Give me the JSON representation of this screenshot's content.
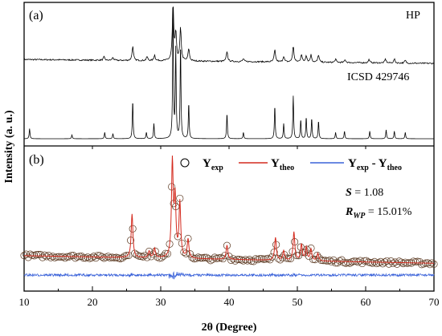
{
  "chart_data": {
    "type": "line",
    "x_label": "2θ (Degree)",
    "y_label": "Intensity (a. u.)",
    "x_range": [
      10,
      70
    ],
    "x_ticks": [
      10,
      20,
      30,
      40,
      50,
      60,
      70
    ],
    "colors": {
      "experimental": "#000000",
      "calculated": "#d42a1e",
      "difference": "#3a62d9",
      "markers": "#5a3820"
    },
    "panels": [
      {
        "label": "(a)",
        "series": [
          {
            "name": "HP",
            "color": "#000000",
            "role": "experimental pattern",
            "baseline": 0.14,
            "noise": 0.012,
            "peaks": [
              [
                21.7,
                0.06
              ],
              [
                23.0,
                0.05
              ],
              [
                25.9,
                0.25
              ],
              [
                28.0,
                0.07
              ],
              [
                29.1,
                0.1
              ],
              [
                31.8,
                1.0
              ],
              [
                32.2,
                0.48
              ],
              [
                32.9,
                0.58
              ],
              [
                34.1,
                0.22
              ],
              [
                39.7,
                0.18
              ],
              [
                42.1,
                0.05
              ],
              [
                46.7,
                0.21
              ],
              [
                48.0,
                0.1
              ],
              [
                49.4,
                0.28
              ],
              [
                50.6,
                0.14
              ],
              [
                51.3,
                0.12
              ],
              [
                52.0,
                0.13
              ],
              [
                53.1,
                0.13
              ],
              [
                55.6,
                0.06
              ],
              [
                57.0,
                0.05
              ],
              [
                60.5,
                0.06
              ],
              [
                62.9,
                0.07
              ],
              [
                64.2,
                0.07
              ],
              [
                65.8,
                0.05
              ]
            ]
          },
          {
            "name": "ICSD 429746",
            "color": "#000000",
            "role": "reference pattern",
            "baseline": 0.0,
            "noise": 0.0,
            "peaks": [
              [
                10.8,
                0.08
              ],
              [
                17.0,
                0.03
              ],
              [
                21.8,
                0.05
              ],
              [
                23.0,
                0.04
              ],
              [
                25.9,
                0.3
              ],
              [
                27.9,
                0.05
              ],
              [
                29.0,
                0.12
              ],
              [
                31.8,
                1.0
              ],
              [
                32.2,
                0.7
              ],
              [
                32.9,
                0.75
              ],
              [
                34.1,
                0.28
              ],
              [
                39.7,
                0.2
              ],
              [
                42.1,
                0.05
              ],
              [
                46.7,
                0.26
              ],
              [
                48.0,
                0.12
              ],
              [
                49.4,
                0.34
              ],
              [
                50.5,
                0.15
              ],
              [
                51.3,
                0.17
              ],
              [
                52.1,
                0.16
              ],
              [
                53.1,
                0.14
              ],
              [
                55.6,
                0.05
              ],
              [
                56.9,
                0.06
              ],
              [
                60.6,
                0.06
              ],
              [
                63.0,
                0.07
              ],
              [
                64.2,
                0.06
              ],
              [
                65.8,
                0.05
              ]
            ]
          }
        ]
      },
      {
        "label": "(b)",
        "series": [
          {
            "name": "Y_exp",
            "role": "observed markers",
            "style": "circle",
            "color": "#5a3820"
          },
          {
            "name": "Y_theo",
            "role": "calculated profile",
            "style": "line",
            "color": "#d42a1e"
          },
          {
            "name": "Y_exp - Y_theo",
            "role": "difference curve",
            "style": "line",
            "color": "#3a62d9"
          }
        ],
        "peaks": [
          [
            25.8,
            0.46
          ],
          [
            28.3,
            0.07
          ],
          [
            29.1,
            0.1
          ],
          [
            31.7,
            1.0
          ],
          [
            32.1,
            0.6
          ],
          [
            32.8,
            0.58
          ],
          [
            34.0,
            0.2
          ],
          [
            39.7,
            0.15
          ],
          [
            46.8,
            0.24
          ],
          [
            48.0,
            0.1
          ],
          [
            49.5,
            0.3
          ],
          [
            50.6,
            0.17
          ],
          [
            51.3,
            0.14
          ],
          [
            52.0,
            0.12
          ],
          [
            53.0,
            0.08
          ]
        ],
        "background_start": 0.12,
        "background_end": 0.04,
        "stats": {
          "S": "1.08",
          "R_WP": "15.01%"
        }
      }
    ]
  },
  "labels": {
    "panel_a": "(a)",
    "panel_b": "(b)",
    "hp": "HP",
    "icsd": "ICSD 429746",
    "x_axis": "2θ (Degree)",
    "y_axis": "Intensity (a. u.)",
    "legend_y": "Y",
    "legend_exp_sub": "exp",
    "legend_theo_sub": "theo",
    "legend_diff_mid": " - Y",
    "s_symbol": "S",
    "s_value": " = 1.08",
    "r_symbol": "R",
    "r_sub": "WP",
    "r_value": " = 15.01%"
  }
}
